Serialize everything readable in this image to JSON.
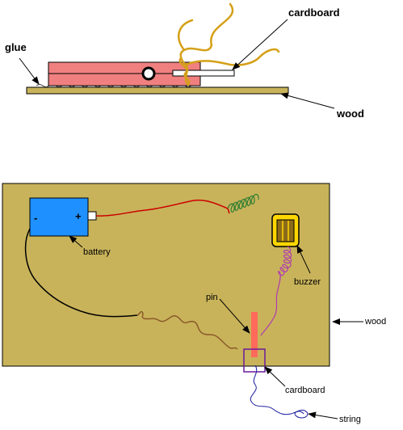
{
  "side_view": {
    "labels": {
      "cardboard": "cardboard",
      "glue": "glue",
      "wood": "wood"
    }
  },
  "top_view": {
    "battery": {
      "minus": "-",
      "plus": "+"
    },
    "labels": {
      "battery": "battery",
      "buzzer": "buzzer",
      "pin": "pin",
      "wood": "wood",
      "cardboard": "cardboard",
      "string": "string"
    }
  },
  "colors": {
    "wood": "#c8b35a",
    "peg": "#f08080",
    "battery": "#1e90ff",
    "buzzer": "#ffd700",
    "red_wire": "#cc0000",
    "green_wire": "#2e7d32",
    "black_wire": "#000000",
    "brown_wire": "#8b5a2b",
    "purple_wire": "#b03ab0",
    "blue_string": "#1a1aa0",
    "gold_string": "#d4a017"
  }
}
